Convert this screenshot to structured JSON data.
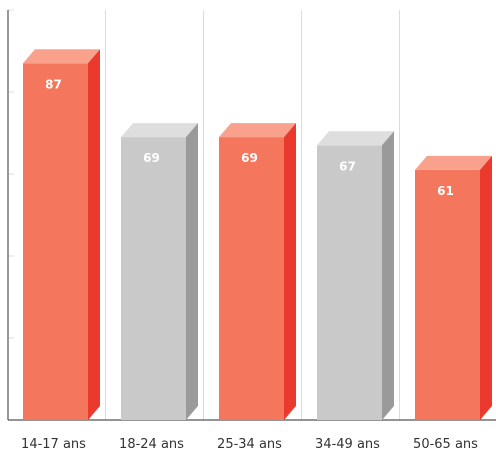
{
  "chart_data": {
    "type": "bar",
    "categories": [
      "14-17 ans",
      "18-24 ans",
      "25-34 ans",
      "34-49 ans",
      "50-65 ans"
    ],
    "values": [
      87,
      69,
      69,
      67,
      61
    ],
    "ylim": [
      0,
      100
    ],
    "grid": true,
    "title": "",
    "xlabel": "",
    "ylabel": "",
    "bar_styles": [
      "highlight",
      "neutral",
      "highlight",
      "neutral",
      "highlight"
    ]
  },
  "colors": {
    "highlight_front": "#f4765c",
    "highlight_top": "#f9a18c",
    "highlight_side": "#ea3a2e",
    "neutral_front": "#c9c9c9",
    "neutral_top": "#dedede",
    "neutral_side": "#9a9a9a",
    "grid": "#dcdcdc",
    "axis": "#555555",
    "value_text": "#ffffff",
    "category_text": "#333333"
  }
}
